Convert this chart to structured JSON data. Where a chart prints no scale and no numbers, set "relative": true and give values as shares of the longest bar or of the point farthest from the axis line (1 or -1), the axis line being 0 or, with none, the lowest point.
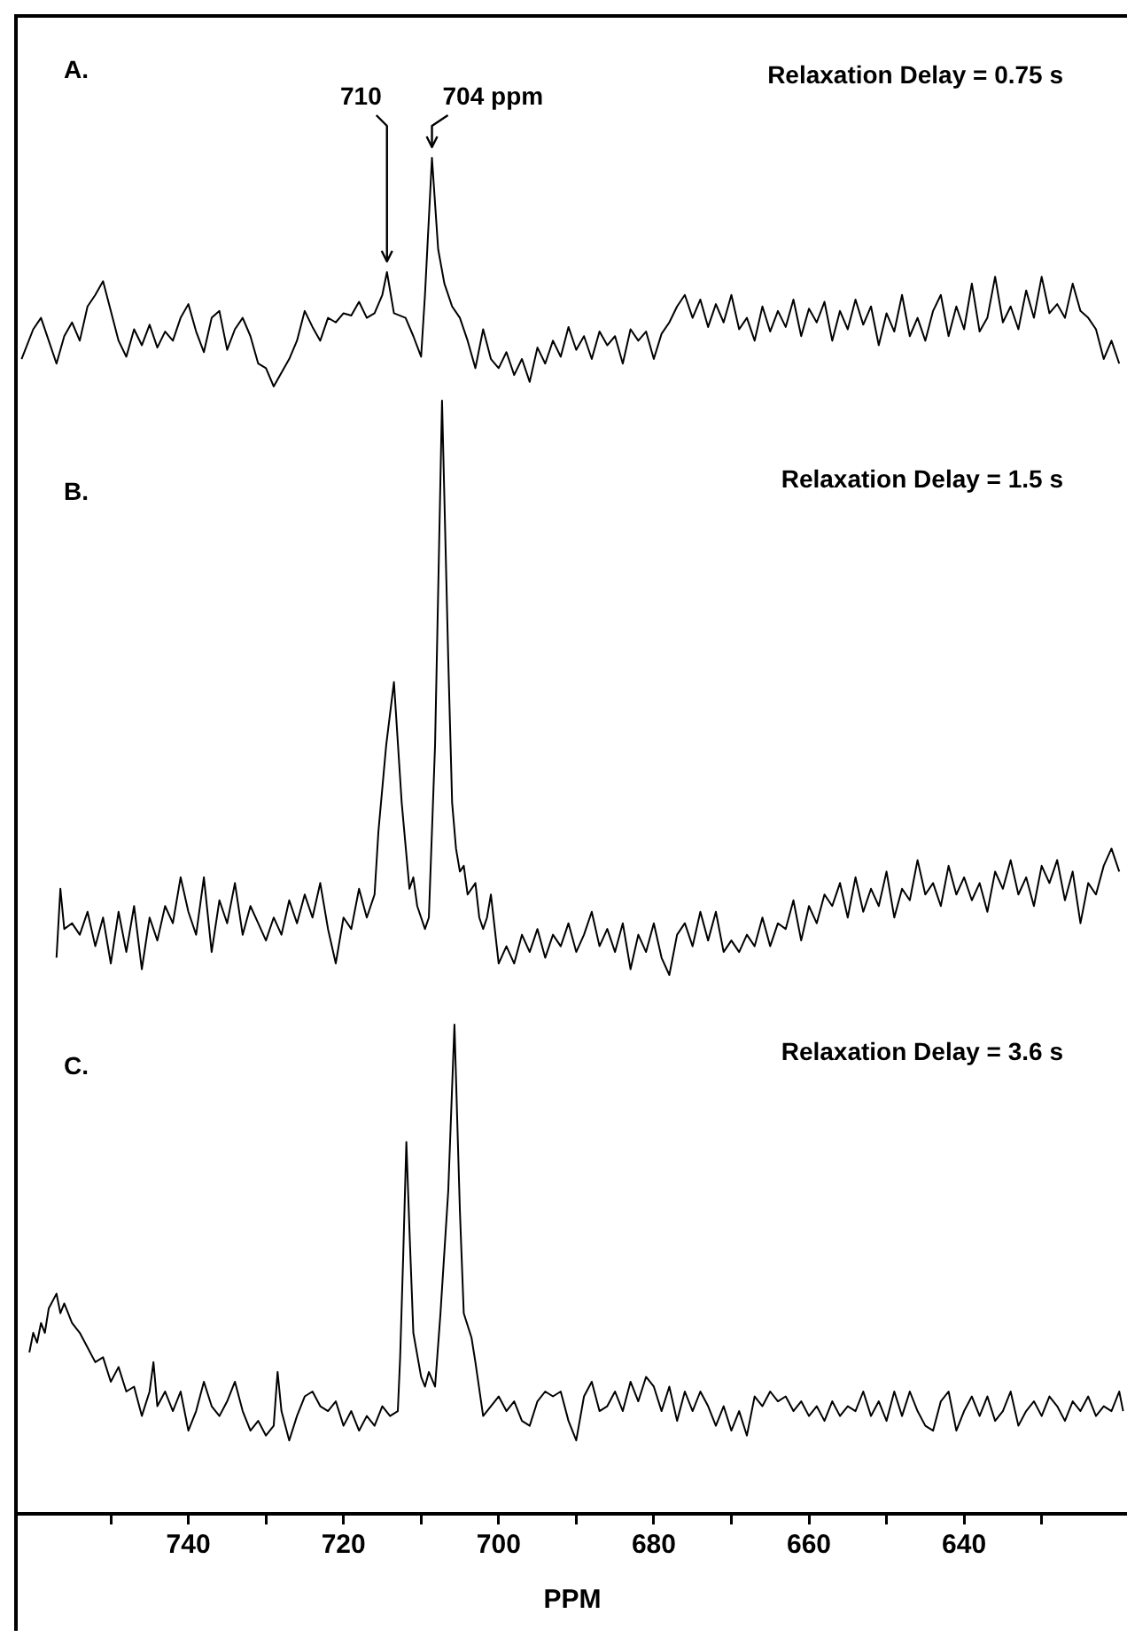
{
  "chart_data": [
    {
      "type": "line",
      "title": "A.",
      "subtitle": "Relaxation Delay = 0.75 s",
      "relative": true,
      "xlim": [
        762,
        619
      ],
      "tick_labels": false,
      "annotations": [
        {
          "text": "710",
          "x": 714.4,
          "y": 0.5
        },
        {
          "text": "704 ppm",
          "x": 708.6,
          "y": 1
        }
      ],
      "series": [
        {
          "color": "#000000",
          "x": [
            761.5,
            760,
            759,
            758,
            757,
            756,
            755,
            754,
            753,
            752,
            751,
            750,
            749,
            748,
            747,
            746,
            745,
            744,
            743,
            742,
            741,
            740,
            739,
            738,
            737,
            736,
            735,
            734,
            733,
            732,
            731,
            730,
            729,
            728,
            727,
            726,
            725,
            724,
            723,
            722,
            721,
            720,
            719,
            718,
            717,
            716,
            715,
            714.4,
            713.5,
            712,
            711,
            710,
            709.5,
            708.6,
            707.8,
            707,
            706,
            705,
            704,
            703,
            702,
            701,
            700,
            699,
            698,
            697,
            696,
            695,
            694,
            693,
            692,
            691,
            690,
            689,
            688,
            687,
            686,
            685,
            684,
            683,
            682,
            681,
            680,
            679,
            678,
            677,
            676,
            675,
            674,
            673,
            672,
            671,
            670,
            669,
            668,
            667,
            666,
            665,
            664,
            663,
            662,
            661,
            660,
            659,
            658,
            657,
            656,
            655,
            654,
            653,
            652,
            651,
            650,
            649,
            648,
            647,
            646,
            645,
            644,
            643,
            642,
            641,
            640,
            639,
            638,
            637,
            636,
            635,
            634,
            633,
            632,
            631,
            630,
            629,
            628,
            627,
            626,
            625,
            624,
            623,
            622,
            621,
            620
          ],
          "values": [
            0.12,
            0.25,
            0.3,
            0.2,
            0.1,
            0.22,
            0.28,
            0.2,
            0.35,
            0.4,
            0.46,
            0.33,
            0.2,
            0.13,
            0.25,
            0.18,
            0.27,
            0.17,
            0.24,
            0.2,
            0.3,
            0.36,
            0.24,
            0.15,
            0.3,
            0.33,
            0.16,
            0.25,
            0.3,
            0.22,
            0.1,
            0.08,
            0,
            0.06,
            0.12,
            0.2,
            0.33,
            0.26,
            0.2,
            0.3,
            0.28,
            0.32,
            0.31,
            0.37,
            0.3,
            0.32,
            0.4,
            0.5,
            0.32,
            0.3,
            0.22,
            0.13,
            0.4,
            1,
            0.6,
            0.45,
            0.35,
            0.3,
            0.2,
            0.08,
            0.25,
            0.12,
            0.08,
            0.15,
            0.05,
            0.12,
            0.02,
            0.17,
            0.1,
            0.2,
            0.13,
            0.26,
            0.16,
            0.22,
            0.12,
            0.24,
            0.18,
            0.22,
            0.1,
            0.25,
            0.2,
            0.24,
            0.12,
            0.23,
            0.28,
            0.35,
            0.4,
            0.3,
            0.38,
            0.26,
            0.36,
            0.28,
            0.4,
            0.25,
            0.3,
            0.2,
            0.35,
            0.24,
            0.33,
            0.26,
            0.38,
            0.22,
            0.34,
            0.28,
            0.37,
            0.2,
            0.33,
            0.25,
            0.38,
            0.27,
            0.35,
            0.18,
            0.32,
            0.24,
            0.4,
            0.22,
            0.3,
            0.2,
            0.33,
            0.4,
            0.22,
            0.35,
            0.25,
            0.45,
            0.24,
            0.3,
            0.48,
            0.28,
            0.35,
            0.25,
            0.42,
            0.3,
            0.48,
            0.32,
            0.36,
            0.3,
            0.45,
            0.33,
            0.3,
            0.25,
            0.12,
            0.2,
            0.1
          ]
        }
      ]
    },
    {
      "type": "line",
      "title": "B.",
      "subtitle": "Relaxation Delay = 1.5 s",
      "relative": true,
      "xlim": [
        762,
        619
      ],
      "tick_labels": false,
      "series": [
        {
          "color": "#000000",
          "x": [
            757,
            756.5,
            756,
            755,
            754,
            753,
            752,
            751,
            750,
            749,
            748,
            747,
            746,
            745,
            744,
            743,
            742,
            741,
            740,
            739,
            738,
            737,
            736,
            735,
            734,
            733,
            732,
            731,
            730,
            729,
            728,
            727,
            726,
            725,
            724,
            723,
            722,
            721,
            720,
            719,
            718,
            717,
            716,
            715.5,
            714.5,
            713.5,
            712.5,
            711.5,
            711,
            710.5,
            709.5,
            709,
            708.2,
            707.3,
            706.5,
            706,
            705.5,
            705,
            704.5,
            704,
            703,
            702.5,
            702,
            701.5,
            701,
            700.5,
            700,
            699,
            698,
            697,
            696,
            695,
            694,
            693,
            692,
            691,
            690,
            689,
            688,
            687,
            686,
            685,
            684,
            683,
            682,
            681,
            680,
            679,
            678,
            677,
            676,
            675,
            674,
            673,
            672,
            671,
            670,
            669,
            668,
            667,
            666,
            665,
            664,
            663,
            662,
            661,
            660,
            659,
            658,
            657,
            656,
            655,
            654,
            653,
            652,
            651,
            650,
            649,
            648,
            647,
            646,
            645,
            644,
            643,
            642,
            641,
            640,
            639,
            638,
            637,
            636,
            635,
            634,
            633,
            632,
            631,
            630,
            629,
            628,
            627,
            626,
            625,
            624,
            623,
            622,
            621,
            620
          ],
          "values": [
            0.03,
            0.15,
            0.08,
            0.09,
            0.07,
            0.11,
            0.05,
            0.1,
            0.02,
            0.11,
            0.04,
            0.12,
            0.01,
            0.1,
            0.06,
            0.12,
            0.09,
            0.17,
            0.11,
            0.07,
            0.17,
            0.04,
            0.13,
            0.09,
            0.16,
            0.07,
            0.12,
            0.09,
            0.06,
            0.1,
            0.07,
            0.13,
            0.09,
            0.14,
            0.1,
            0.16,
            0.08,
            0.02,
            0.1,
            0.08,
            0.15,
            0.1,
            0.14,
            0.25,
            0.4,
            0.51,
            0.3,
            0.15,
            0.17,
            0.12,
            0.08,
            0.1,
            0.4,
            1,
            0.55,
            0.3,
            0.22,
            0.18,
            0.19,
            0.14,
            0.16,
            0.1,
            0.08,
            0.1,
            0.14,
            0.08,
            0.02,
            0.05,
            0.02,
            0.07,
            0.04,
            0.08,
            0.03,
            0.07,
            0.05,
            0.09,
            0.04,
            0.07,
            0.11,
            0.05,
            0.08,
            0.04,
            0.09,
            0.01,
            0.07,
            0.04,
            0.09,
            0.03,
            0,
            0.07,
            0.09,
            0.05,
            0.11,
            0.06,
            0.11,
            0.04,
            0.06,
            0.04,
            0.07,
            0.05,
            0.1,
            0.05,
            0.09,
            0.08,
            0.13,
            0.06,
            0.12,
            0.09,
            0.14,
            0.12,
            0.16,
            0.1,
            0.17,
            0.11,
            0.15,
            0.12,
            0.18,
            0.1,
            0.15,
            0.13,
            0.2,
            0.14,
            0.16,
            0.12,
            0.19,
            0.14,
            0.17,
            0.13,
            0.16,
            0.11,
            0.18,
            0.15,
            0.2,
            0.14,
            0.17,
            0.12,
            0.19,
            0.16,
            0.2,
            0.13,
            0.18,
            0.09,
            0.16,
            0.14,
            0.19,
            0.22,
            0.18
          ]
        }
      ]
    },
    {
      "type": "line",
      "title": "C.",
      "subtitle": "Relaxation Delay = 3.6 s",
      "relative": true,
      "xlim": [
        762,
        619
      ],
      "xlabel": "PPM",
      "xticks": [
        {
          "value": 750,
          "label": null
        },
        740,
        {
          "value": 730,
          "label": null
        },
        720,
        {
          "value": 710,
          "label": null
        },
        700,
        {
          "value": 690,
          "label": null
        },
        680,
        {
          "value": 670,
          "label": null
        },
        660,
        {
          "value": 650,
          "label": null
        },
        640,
        {
          "value": 630,
          "label": null
        }
      ],
      "series": [
        {
          "color": "#000000",
          "x": [
            760.5,
            760,
            759.5,
            759,
            758.5,
            758,
            757,
            756.5,
            756,
            755,
            754,
            753,
            752,
            751,
            750,
            749,
            748,
            747,
            746,
            745,
            744.5,
            744,
            743,
            742,
            741,
            740,
            739,
            738,
            737,
            736,
            735,
            734,
            733,
            732,
            731,
            730,
            729,
            728.5,
            728,
            727,
            726,
            725,
            724,
            723,
            722,
            721,
            720,
            719,
            718,
            717,
            716,
            715,
            714,
            713,
            712.7,
            712.3,
            711.9,
            711.5,
            711,
            710,
            709.5,
            709,
            708.2,
            707.5,
            706.5,
            705.7,
            705,
            704.5,
            703.5,
            703,
            702,
            701,
            700,
            699,
            698,
            697,
            696,
            695,
            694,
            693,
            692,
            691,
            690,
            689,
            688,
            687,
            686,
            685,
            684,
            683,
            682,
            681,
            680,
            679,
            678,
            677,
            676,
            675,
            674,
            673,
            672,
            671,
            670,
            669,
            668,
            667,
            666,
            665,
            664,
            663,
            662,
            661,
            660,
            659,
            658,
            657,
            656,
            655,
            654,
            653,
            652,
            651,
            650,
            649,
            648,
            647,
            646,
            645,
            644,
            643,
            642,
            641,
            640,
            639,
            638,
            637,
            636,
            635,
            634,
            633,
            632,
            631,
            630,
            629,
            628,
            627,
            626,
            625,
            624,
            623,
            622,
            621,
            620,
            619.5
          ],
          "values": [
            0.33,
            0.37,
            0.35,
            0.39,
            0.37,
            0.42,
            0.45,
            0.41,
            0.43,
            0.39,
            0.37,
            0.34,
            0.31,
            0.32,
            0.27,
            0.3,
            0.25,
            0.26,
            0.2,
            0.25,
            0.31,
            0.22,
            0.25,
            0.21,
            0.25,
            0.17,
            0.21,
            0.27,
            0.22,
            0.2,
            0.23,
            0.27,
            0.21,
            0.17,
            0.19,
            0.16,
            0.18,
            0.29,
            0.21,
            0.15,
            0.2,
            0.24,
            0.25,
            0.22,
            0.21,
            0.23,
            0.18,
            0.21,
            0.17,
            0.2,
            0.18,
            0.22,
            0.2,
            0.21,
            0.32,
            0.53,
            0.76,
            0.58,
            0.37,
            0.28,
            0.26,
            0.29,
            0.26,
            0.41,
            0.66,
            1,
            0.62,
            0.41,
            0.36,
            0.31,
            0.2,
            0.22,
            0.24,
            0.21,
            0.23,
            0.19,
            0.18,
            0.23,
            0.25,
            0.24,
            0.25,
            0.19,
            0.15,
            0.24,
            0.27,
            0.21,
            0.22,
            0.25,
            0.21,
            0.27,
            0.23,
            0.28,
            0.26,
            0.21,
            0.26,
            0.19,
            0.25,
            0.21,
            0.25,
            0.22,
            0.18,
            0.22,
            0.17,
            0.21,
            0.16,
            0.24,
            0.22,
            0.25,
            0.23,
            0.24,
            0.21,
            0.23,
            0.2,
            0.22,
            0.19,
            0.23,
            0.2,
            0.22,
            0.21,
            0.25,
            0.2,
            0.23,
            0.19,
            0.25,
            0.2,
            0.25,
            0.21,
            0.18,
            0.17,
            0.23,
            0.25,
            0.17,
            0.21,
            0.24,
            0.2,
            0.24,
            0.19,
            0.21,
            0.25,
            0.18,
            0.21,
            0.23,
            0.2,
            0.24,
            0.22,
            0.19,
            0.23,
            0.21,
            0.24,
            0.2,
            0.22,
            0.21,
            0.25,
            0.21
          ]
        }
      ]
    }
  ]
}
